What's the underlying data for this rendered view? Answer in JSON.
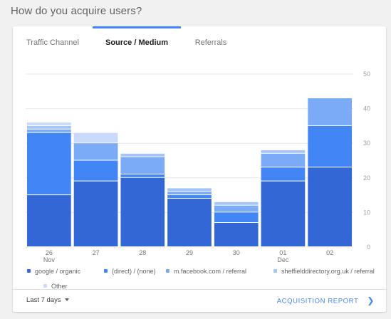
{
  "page": {
    "heading": "How do you acquire users?"
  },
  "tabs": [
    {
      "label": "Traffic Channel",
      "active": false
    },
    {
      "label": "Source / Medium",
      "active": true
    },
    {
      "label": "Referrals",
      "active": false
    }
  ],
  "colors": {
    "accent": "#4285f4",
    "series": [
      "#3367d6",
      "#4285f4",
      "#7baaf7",
      "#a5c4f9",
      "#c9dafb"
    ]
  },
  "chart_data": {
    "type": "bar",
    "stacked": true,
    "categories": [
      "26",
      "27",
      "28",
      "29",
      "30",
      "01",
      "02"
    ],
    "category_sublabels": [
      "Nov",
      "",
      "",
      "",
      "",
      "Dec",
      ""
    ],
    "ylim": [
      0,
      50
    ],
    "yticks": [
      0,
      10,
      20,
      30,
      40,
      50
    ],
    "grid": true,
    "legend_position": "bottom",
    "series": [
      {
        "name": "google / organic",
        "values": [
          15,
          19,
          20,
          14,
          7,
          19,
          23
        ]
      },
      {
        "name": "(direct) / (none)",
        "values": [
          18,
          6,
          1,
          1,
          3,
          4,
          12
        ]
      },
      {
        "name": "m.facebook.com / referral",
        "values": [
          1,
          5,
          5,
          1,
          2,
          4,
          8
        ]
      },
      {
        "name": "sheffielddirectory.org.uk / referral",
        "values": [
          1,
          0,
          1,
          1,
          1,
          1,
          0
        ]
      },
      {
        "name": "Other",
        "values": [
          1,
          3,
          0,
          0,
          0,
          0,
          0
        ]
      }
    ]
  },
  "footer": {
    "date_range": "Last 7 days",
    "report_link": "ACQUISITION REPORT"
  }
}
